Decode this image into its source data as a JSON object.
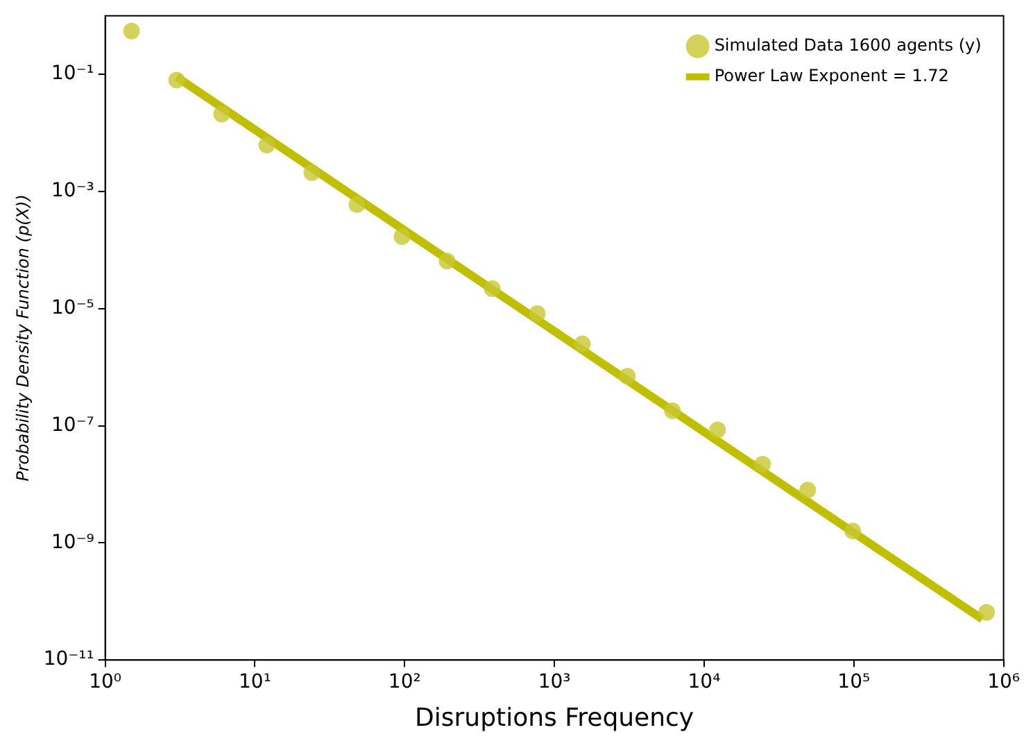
{
  "chart_data": {
    "type": "scatter",
    "xlabel": "Disruptions Frequency",
    "ylabel": "Probability Density Function (p(X))",
    "log": "xy",
    "legend": "top right",
    "grid": false,
    "marker": "circle",
    "xlim": [
      1,
      1000000
    ],
    "xticks": [
      {
        "value": 1,
        "label": "10⁰"
      },
      {
        "value": 10,
        "label": "10¹"
      },
      {
        "value": 100,
        "label": "10²"
      },
      {
        "value": 1000,
        "label": "10³"
      },
      {
        "value": 10000,
        "label": "10⁴"
      },
      {
        "value": 100000,
        "label": "10⁵"
      },
      {
        "value": 1000000,
        "label": "10⁶"
      }
    ],
    "ylim": [
      1e-11,
      1
    ],
    "yticks": [
      {
        "value": 1e-11,
        "label": "10⁻¹¹"
      },
      {
        "value": 1e-09,
        "label": "10⁻⁹"
      },
      {
        "value": 1e-07,
        "label": "10⁻⁷"
      },
      {
        "value": 1e-05,
        "label": "10⁻⁵"
      },
      {
        "value": 0.001,
        "label": "10⁻³"
      },
      {
        "value": 0.1,
        "label": "10⁻¹"
      }
    ],
    "series": [
      {
        "name": "Simulated Data 1600 agents (y)",
        "color": "#c8c832",
        "x": [
          1.5,
          3,
          6,
          12,
          24,
          48,
          96,
          192,
          384,
          768,
          1536,
          3072,
          6144,
          12288,
          24576,
          49152,
          98304,
          770000
        ],
        "values": [
          0.55,
          0.08,
          0.021,
          0.0062,
          0.0021,
          0.0006,
          0.00017,
          6.5e-05,
          2.2e-05,
          8.2e-06,
          2.5e-06,
          7e-07,
          1.8e-07,
          8.5e-08,
          2.2e-08,
          8e-09,
          1.6e-09,
          6.5e-11
        ]
      },
      {
        "name": "Power Law Exponent = 1.72",
        "type": "line",
        "color": "#bfbf00",
        "line_style": "solid",
        "marker": "none",
        "x": [
          3,
          720000
        ],
        "values": [
          0.09,
          5e-11
        ]
      }
    ]
  }
}
